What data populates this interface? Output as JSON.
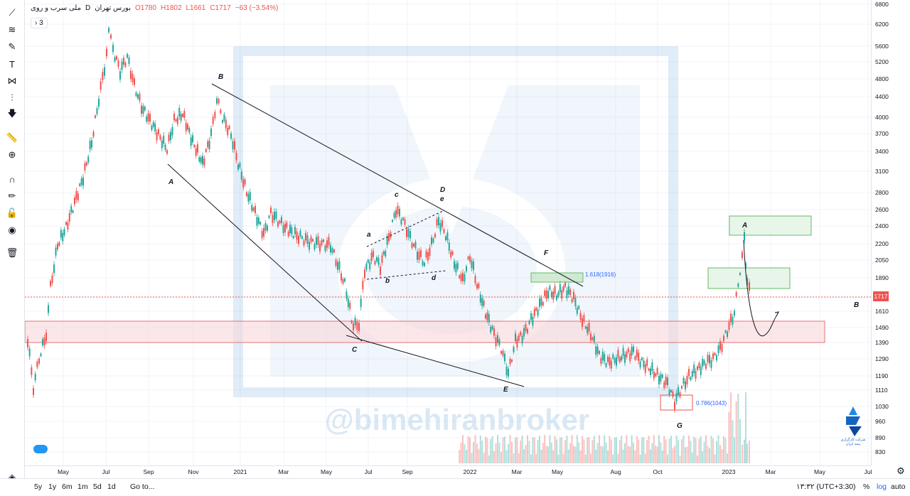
{
  "legend": {
    "symbol": "ملی سرب و روی",
    "interval": "D",
    "exchange": "بورس تهران",
    "open": "O1780",
    "high": "H1802",
    "low": "L1661",
    "close": "C1717",
    "change": "−63 (−3.54%)"
  },
  "indicator_toggle": "› 3",
  "last_price": "1717",
  "price_axis": [
    "6800",
    "6200",
    "5600",
    "5200",
    "4800",
    "4400",
    "4000",
    "3700",
    "3400",
    "3100",
    "2800",
    "2600",
    "2400",
    "2200",
    "2050",
    "1890",
    "1717",
    "1610",
    "1490",
    "1390",
    "1290",
    "1190",
    "1110",
    "1030",
    "960",
    "890",
    "830"
  ],
  "time_axis": [
    "May",
    "Jul",
    "Sep",
    "Nov",
    "2021",
    "Mar",
    "May",
    "Jul",
    "Sep",
    "2022",
    "Mar",
    "May",
    "Aug",
    "Oct",
    "2023",
    "Mar",
    "May",
    "Jul"
  ],
  "annotations": {
    "wave_labels": [
      "A",
      "B",
      "C",
      "D",
      "E",
      "F",
      "G",
      "a",
      "b",
      "c",
      "d",
      "e",
      "A",
      "B"
    ],
    "fib_upper": "1.618(1916)",
    "fib_lower": "0.786(1043)",
    "watermark": "@bimehiranbroker",
    "brand_line1": "شرکت کارگزاری",
    "brand_line2": "بیمه ایران"
  },
  "bottom_bar": {
    "ranges": [
      "5y",
      "1y",
      "6m",
      "1m",
      "5d",
      "1d"
    ],
    "goto": "Go to...",
    "clock": "۱۳:۳۲ (UTC+3:30)",
    "percent": "%",
    "log": "log",
    "auto": "auto"
  },
  "tools": [
    "trend-line-icon",
    "fib-icon",
    "brush-icon",
    "text-icon",
    "pattern-icon",
    "measure-icon",
    "arrow-down-icon",
    "ruler-icon",
    "zoom-icon",
    "magnet-icon",
    "lock-drawing-icon",
    "lock-icon",
    "eye-icon",
    "trash-icon",
    "layers-icon"
  ],
  "colors": {
    "up": "#26a69a",
    "down": "#ef5350",
    "zone_red": "#f8d7da",
    "zone_green": "#d4edda",
    "accent": "#2962ff"
  }
}
